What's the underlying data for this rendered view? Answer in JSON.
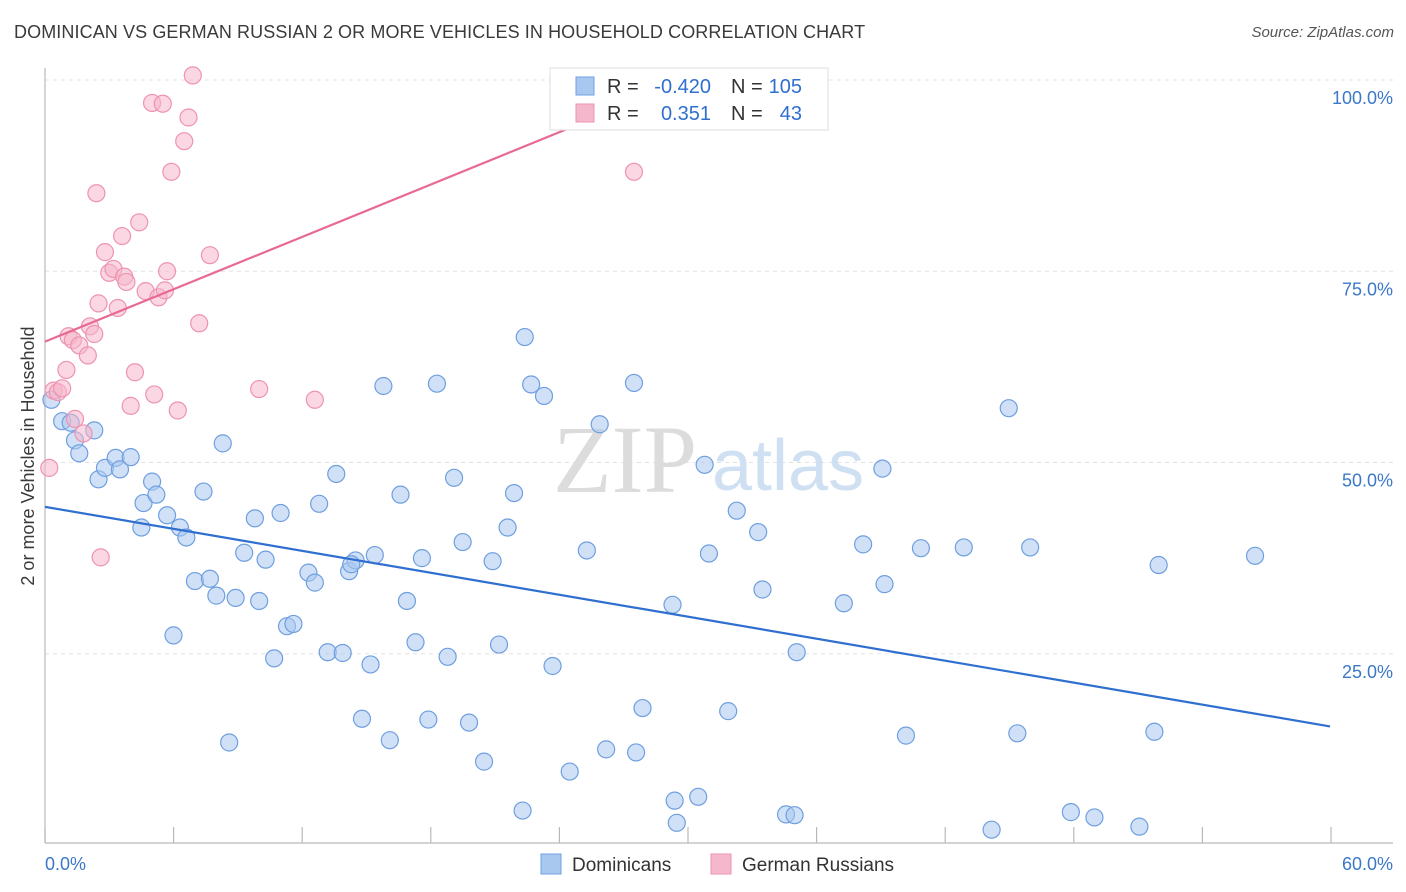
{
  "header": {
    "title": "DOMINICAN VS GERMAN RUSSIAN 2 OR MORE VEHICLES IN HOUSEHOLD CORRELATION CHART",
    "source": "Source: ZipAtlas.com"
  },
  "watermark": {
    "zip": "ZIP",
    "atlas": "atlas"
  },
  "legend_top": {
    "rows": [
      {
        "r_label": "R =",
        "r_value": "-0.420",
        "n_label": "N =",
        "n_value": "105",
        "color": "#a9c8f0"
      },
      {
        "r_label": "R =",
        "r_value": "0.351",
        "n_label": "N =",
        "n_value": "43",
        "color": "#f5b7cb"
      }
    ]
  },
  "legend_bottom": {
    "items": [
      {
        "label": "Dominicans",
        "color": "#a9c8f0"
      },
      {
        "label": "German Russians",
        "color": "#f5b7cb"
      }
    ]
  },
  "chart_data": {
    "type": "scatter",
    "title": "DOMINICAN VS GERMAN RUSSIAN 2 OR MORE VEHICLES IN HOUSEHOLD CORRELATION CHART",
    "xlabel": "",
    "ylabel": "2 or more Vehicles in Household",
    "xlim": [
      0,
      60
    ],
    "ylim": [
      0,
      102
    ],
    "x_tick_labels": [
      "0.0%",
      "60.0%"
    ],
    "y_ticks": [
      25,
      50,
      75,
      100
    ],
    "y_tick_labels": [
      "25.0%",
      "50.0%",
      "75.0%",
      "100.0%"
    ],
    "grid": true,
    "legend_position": "top-center",
    "series": [
      {
        "name": "Dominicans",
        "color": "#a9c8f0",
        "stroke": "#6f9fe0",
        "trend": {
          "x": [
            0,
            60
          ],
          "y": [
            44.2,
            15.5
          ],
          "color": "#2f6fd0"
        },
        "points": [
          [
            0.3,
            58.2
          ],
          [
            0.8,
            55.4
          ],
          [
            1.2,
            55.2
          ],
          [
            1.4,
            52.9
          ],
          [
            1.6,
            51.2
          ],
          [
            2.3,
            54.2
          ],
          [
            2.5,
            47.8
          ],
          [
            2.8,
            49.3
          ],
          [
            3.3,
            50.6
          ],
          [
            3.5,
            49.1
          ],
          [
            4.0,
            50.7
          ],
          [
            4.5,
            41.5
          ],
          [
            4.6,
            44.7
          ],
          [
            5.0,
            47.5
          ],
          [
            5.2,
            45.8
          ],
          [
            5.7,
            43.1
          ],
          [
            6.0,
            27.4
          ],
          [
            6.3,
            41.5
          ],
          [
            6.6,
            40.2
          ],
          [
            7.0,
            34.5
          ],
          [
            7.4,
            46.2
          ],
          [
            7.7,
            34.8
          ],
          [
            8.0,
            32.6
          ],
          [
            8.3,
            52.5
          ],
          [
            8.6,
            13.4
          ],
          [
            8.9,
            32.3
          ],
          [
            9.3,
            38.2
          ],
          [
            9.8,
            42.7
          ],
          [
            10.0,
            31.9
          ],
          [
            10.3,
            37.3
          ],
          [
            10.7,
            24.4
          ],
          [
            11.0,
            43.4
          ],
          [
            11.3,
            28.6
          ],
          [
            11.6,
            28.9
          ],
          [
            12.3,
            35.6
          ],
          [
            12.6,
            34.3
          ],
          [
            12.8,
            44.6
          ],
          [
            13.2,
            25.2
          ],
          [
            13.6,
            48.5
          ],
          [
            13.9,
            25.1
          ],
          [
            14.2,
            35.8
          ],
          [
            14.5,
            37.2
          ],
          [
            14.8,
            16.5
          ],
          [
            15.2,
            23.6
          ],
          [
            15.4,
            37.9
          ],
          [
            15.8,
            60.0
          ],
          [
            16.1,
            13.7
          ],
          [
            16.6,
            45.8
          ],
          [
            16.9,
            31.9
          ],
          [
            17.3,
            26.5
          ],
          [
            17.6,
            37.5
          ],
          [
            17.9,
            16.4
          ],
          [
            18.3,
            60.3
          ],
          [
            18.8,
            24.6
          ],
          [
            19.1,
            48.0
          ],
          [
            19.5,
            39.6
          ],
          [
            19.8,
            16.0
          ],
          [
            20.5,
            10.9
          ],
          [
            20.9,
            37.1
          ],
          [
            21.2,
            26.2
          ],
          [
            21.6,
            41.5
          ],
          [
            21.9,
            46.0
          ],
          [
            22.3,
            4.5
          ],
          [
            22.7,
            60.2
          ],
          [
            23.3,
            58.7
          ],
          [
            23.7,
            23.4
          ],
          [
            24.5,
            9.6
          ],
          [
            25.3,
            38.5
          ],
          [
            25.9,
            55.0
          ],
          [
            26.2,
            12.5
          ],
          [
            27.6,
            12.1
          ],
          [
            27.9,
            17.9
          ],
          [
            29.3,
            31.4
          ],
          [
            29.4,
            5.8
          ],
          [
            29.5,
            2.9
          ],
          [
            30.5,
            6.3
          ],
          [
            30.8,
            49.7
          ],
          [
            31.0,
            38.1
          ],
          [
            31.9,
            17.5
          ],
          [
            32.3,
            43.7
          ],
          [
            33.3,
            40.9
          ],
          [
            33.5,
            33.4
          ],
          [
            34.6,
            4.0
          ],
          [
            35.0,
            3.9
          ],
          [
            35.1,
            25.2
          ],
          [
            37.3,
            31.6
          ],
          [
            38.2,
            39.3
          ],
          [
            39.1,
            49.2
          ],
          [
            39.2,
            34.1
          ],
          [
            40.2,
            14.3
          ],
          [
            40.9,
            38.8
          ],
          [
            42.9,
            38.9
          ],
          [
            44.2,
            2.0
          ],
          [
            45.0,
            57.1
          ],
          [
            45.4,
            14.6
          ],
          [
            46.0,
            38.9
          ],
          [
            47.9,
            4.3
          ],
          [
            49.0,
            3.6
          ],
          [
            51.1,
            2.4
          ],
          [
            51.8,
            14.8
          ],
          [
            52.0,
            36.6
          ],
          [
            56.5,
            37.8
          ],
          [
            22.4,
            66.4
          ],
          [
            27.5,
            60.4
          ],
          [
            14.3,
            36.7
          ]
        ]
      },
      {
        "name": "German Russians",
        "color": "#f5b7cb",
        "stroke": "#ee93b1",
        "trend": {
          "x": [
            0,
            30
          ],
          "y": [
            65.8,
            100.0
          ],
          "color": "#e86a93"
        },
        "points": [
          [
            0.2,
            49.3
          ],
          [
            0.4,
            59.4
          ],
          [
            0.6,
            59.2
          ],
          [
            0.8,
            59.7
          ],
          [
            1.0,
            62.1
          ],
          [
            1.1,
            66.5
          ],
          [
            1.3,
            66.0
          ],
          [
            1.4,
            55.7
          ],
          [
            1.6,
            65.3
          ],
          [
            1.8,
            53.8
          ],
          [
            2.0,
            64.0
          ],
          [
            2.1,
            67.8
          ],
          [
            2.3,
            66.8
          ],
          [
            2.4,
            85.2
          ],
          [
            2.5,
            70.8
          ],
          [
            2.8,
            77.5
          ],
          [
            3.0,
            74.8
          ],
          [
            3.2,
            75.3
          ],
          [
            3.4,
            70.2
          ],
          [
            3.6,
            79.6
          ],
          [
            3.7,
            74.3
          ],
          [
            3.8,
            73.6
          ],
          [
            4.0,
            57.4
          ],
          [
            4.2,
            61.8
          ],
          [
            4.4,
            81.4
          ],
          [
            4.7,
            72.4
          ],
          [
            5.0,
            97.0
          ],
          [
            5.1,
            58.9
          ],
          [
            5.3,
            71.6
          ],
          [
            5.5,
            96.9
          ],
          [
            5.7,
            75.0
          ],
          [
            5.9,
            88.0
          ],
          [
            6.2,
            56.8
          ],
          [
            6.5,
            92.0
          ],
          [
            6.7,
            95.1
          ],
          [
            6.9,
            100.6
          ],
          [
            7.2,
            68.2
          ],
          [
            7.7,
            77.1
          ],
          [
            10.0,
            59.6
          ],
          [
            12.6,
            58.2
          ],
          [
            27.5,
            88.0
          ],
          [
            5.6,
            72.5
          ],
          [
            2.6,
            37.6
          ]
        ]
      }
    ]
  }
}
